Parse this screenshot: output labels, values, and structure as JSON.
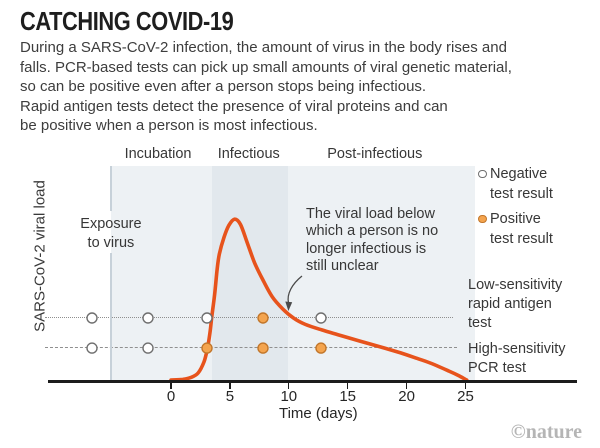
{
  "header": {
    "title": "CATCHING COVID-19",
    "intro_lines": [
      "During a SARS-CoV-2 infection, the amount of virus in the body rises and",
      "falls. PCR-based tests can pick up small amounts of viral genetic material,",
      "so can be positive even after a person stops being infectious.",
      "Rapid antigen tests detect the presence of viral proteins and can",
      "be positive when a person is most infectious."
    ]
  },
  "chart_data": {
    "type": "line",
    "title": "CATCHING COVID-19",
    "xlabel": "Time (days)",
    "ylabel": "SARS-CoV-2 viral load",
    "x_ticks": [
      0,
      5,
      10,
      15,
      20,
      25
    ],
    "xlim_days": [
      -10.4,
      34.4
    ],
    "plot_span_days": [
      -5.1,
      25.8
    ],
    "grid": false,
    "phases": [
      {
        "label": "Incubation",
        "label_center_day": -1.1
      },
      {
        "label": "Infectious",
        "label_center_day": 6.6,
        "band_days": [
          3.5,
          9.95
        ],
        "shaded": true
      },
      {
        "label": "Post-infectious",
        "label_center_day": 17.3
      }
    ],
    "exposure": {
      "lines": [
        "Exposure",
        "to virus"
      ],
      "day": -5.1
    },
    "annotation": {
      "lines": [
        "The viral load below",
        "which a person is no",
        "longer infectious is",
        "still unclear"
      ]
    },
    "curve": {
      "name": "viral-load-curve",
      "units": "relative viral load (0-100)",
      "points": [
        [
          0,
          0
        ],
        [
          1,
          0.3
        ],
        [
          1.7,
          1.2
        ],
        [
          2.3,
          3.3
        ],
        [
          2.8,
          8.5
        ],
        [
          3.1,
          15
        ],
        [
          3.3,
          22
        ],
        [
          3.45,
          29
        ],
        [
          3.7,
          40
        ],
        [
          3.9,
          51
        ],
        [
          4.1,
          59
        ],
        [
          4.5,
          67
        ],
        [
          4.9,
          72.5
        ],
        [
          5.4,
          75.5
        ],
        [
          5.9,
          73
        ],
        [
          6.5,
          64
        ],
        [
          7.1,
          55
        ],
        [
          7.8,
          47
        ],
        [
          8.6,
          39
        ],
        [
          9.5,
          33.3
        ],
        [
          10.4,
          29.1
        ],
        [
          11.4,
          26.1
        ],
        [
          12.8,
          23.5
        ],
        [
          14.4,
          20.9
        ],
        [
          16,
          18.3
        ],
        [
          17.8,
          15.5
        ],
        [
          19.5,
          12.7
        ],
        [
          20.8,
          10.3
        ],
        [
          22,
          8
        ],
        [
          23.6,
          4.2
        ],
        [
          24.4,
          2.1
        ],
        [
          25.1,
          0
        ]
      ]
    },
    "test_lines": [
      {
        "name": "low-sensitivity-rapid-antigen-test",
        "label_lines": [
          "Low-sensitivity",
          "rapid antigen",
          "test"
        ],
        "style": "dotted",
        "level": 29.1,
        "points": [
          {
            "day": -6.71,
            "result": "negative"
          },
          {
            "day": -1.95,
            "result": "negative"
          },
          {
            "day": 3.06,
            "result": "negative"
          },
          {
            "day": 7.81,
            "result": "positive"
          },
          {
            "day": 12.73,
            "result": "negative"
          }
        ]
      },
      {
        "name": "high-sensitivity-pcr-test",
        "label_lines": [
          "High-sensitivity",
          "PCR test"
        ],
        "style": "dashed",
        "level": 15,
        "points": [
          {
            "day": -6.71,
            "result": "negative"
          },
          {
            "day": -1.95,
            "result": "negative"
          },
          {
            "day": 3.06,
            "result": "positive"
          },
          {
            "day": 7.81,
            "result": "positive"
          },
          {
            "day": 12.73,
            "result": "positive"
          }
        ]
      }
    ],
    "legend": [
      {
        "lines": [
          "Negative",
          "test result"
        ],
        "type": "negative"
      },
      {
        "lines": [
          "Positive",
          "test result"
        ],
        "type": "positive"
      }
    ],
    "colors": {
      "curve": "#e7531c",
      "positive_fill": "#f4a44e",
      "positive_stroke": "#c2762a",
      "negative_stroke": "#6f6f6f",
      "plot_bg": "#edf1f4",
      "infectious_band": "#e2e8ed",
      "axis": "#1c1c1c",
      "threshold_line": "#8f8f8f"
    }
  },
  "footer": {
    "credit": "©nature"
  }
}
